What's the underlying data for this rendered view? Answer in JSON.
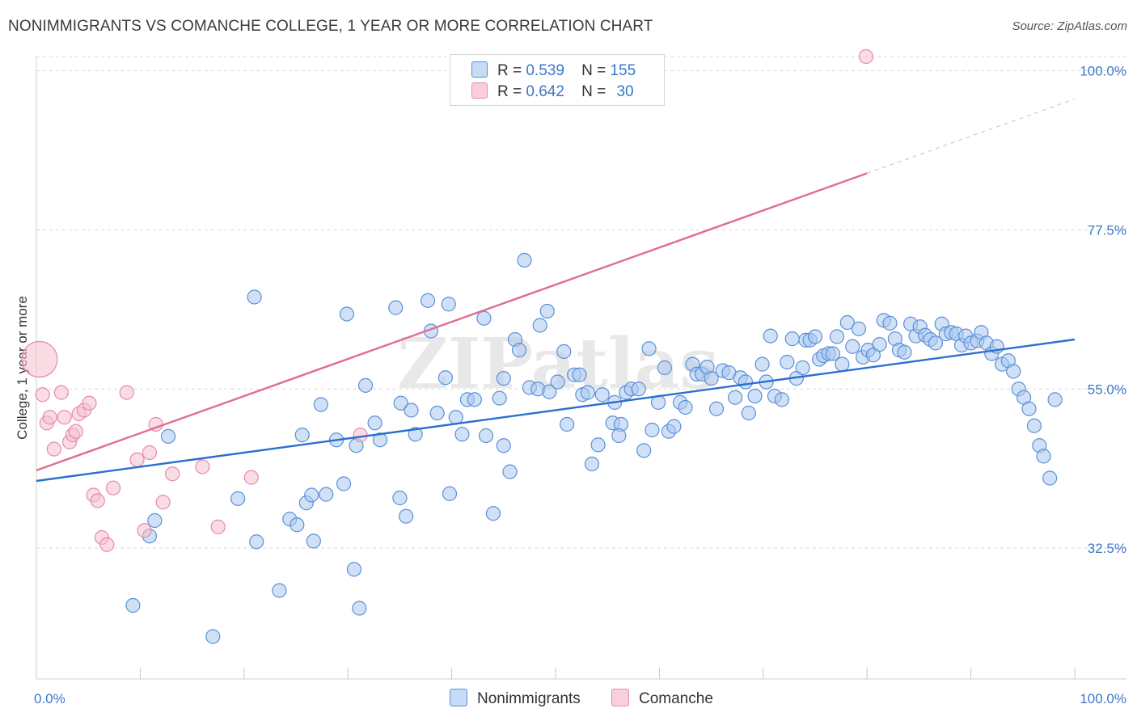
{
  "header": {
    "title": "NONIMMIGRANTS VS COMANCHE COLLEGE, 1 YEAR OR MORE CORRELATION CHART",
    "source": "Source: ZipAtlas.com"
  },
  "watermark": "ZIPatlas",
  "legend": {
    "rows": [
      {
        "r_label": "R =",
        "r_value": "0.539",
        "n_label": "N =",
        "n_value": "155"
      },
      {
        "r_label": "R =",
        "r_value": "0.642",
        "n_label": "N =",
        "n_value": "30"
      }
    ]
  },
  "bottom_legend": {
    "items": [
      {
        "label": "Nonimmigrants"
      },
      {
        "label": "Comanche"
      }
    ]
  },
  "colors": {
    "blue_fill": "#a9c8f0",
    "blue_stroke": "#5b8fd6",
    "blue_line": "#2a6fd0",
    "pink_fill": "#f6bfd0",
    "pink_stroke": "#e58aa8",
    "pink_line": "#e06c94",
    "grid": "#d8d8d8",
    "tick_text": "#3a78c9"
  },
  "chart_data": {
    "type": "scatter",
    "title": "NONIMMIGRANTS VS COMANCHE COLLEGE, 1 YEAR OR MORE CORRELATION CHART",
    "xlabel": "",
    "ylabel": "College, 1 year or more",
    "xlim": [
      0,
      100
    ],
    "ylim": [
      14,
      102
    ],
    "x_tick_labels": [
      "0.0%",
      "100.0%"
    ],
    "y_ticks": [
      32.5,
      55.0,
      77.5,
      100.0
    ],
    "y_tick_labels": [
      "32.5%",
      "55.0%",
      "77.5%",
      "100.0%"
    ],
    "grid": true,
    "legend_position": "top-center",
    "series": [
      {
        "name": "Nonimmigrants",
        "r": 0.539,
        "n": 155,
        "trend": {
          "x": [
            0,
            100
          ],
          "y": [
            42.0,
            62.0
          ]
        },
        "points": [
          {
            "x": 12.7,
            "y": 48.3
          },
          {
            "x": 11.4,
            "y": 36.4
          },
          {
            "x": 9.3,
            "y": 24.4
          },
          {
            "x": 10.9,
            "y": 34.2
          },
          {
            "x": 17.0,
            "y": 20.0
          },
          {
            "x": 19.4,
            "y": 39.5
          },
          {
            "x": 21.0,
            "y": 68.0
          },
          {
            "x": 21.2,
            "y": 33.4
          },
          {
            "x": 23.4,
            "y": 26.5
          },
          {
            "x": 24.4,
            "y": 36.6
          },
          {
            "x": 25.1,
            "y": 35.8
          },
          {
            "x": 25.6,
            "y": 48.5
          },
          {
            "x": 26.0,
            "y": 38.9
          },
          {
            "x": 26.5,
            "y": 40.0
          },
          {
            "x": 26.7,
            "y": 33.5
          },
          {
            "x": 27.4,
            "y": 52.8
          },
          {
            "x": 27.9,
            "y": 40.1
          },
          {
            "x": 28.9,
            "y": 47.8
          },
          {
            "x": 29.6,
            "y": 41.6
          },
          {
            "x": 29.9,
            "y": 65.6
          },
          {
            "x": 30.6,
            "y": 29.5
          },
          {
            "x": 30.8,
            "y": 47.0
          },
          {
            "x": 31.7,
            "y": 55.5
          },
          {
            "x": 31.1,
            "y": 24.0
          },
          {
            "x": 33.1,
            "y": 47.8
          },
          {
            "x": 32.6,
            "y": 50.2
          },
          {
            "x": 34.6,
            "y": 66.5
          },
          {
            "x": 35.0,
            "y": 39.6
          },
          {
            "x": 35.1,
            "y": 53.0
          },
          {
            "x": 35.6,
            "y": 37.0
          },
          {
            "x": 36.1,
            "y": 52.0
          },
          {
            "x": 36.5,
            "y": 48.6
          },
          {
            "x": 37.7,
            "y": 67.5
          },
          {
            "x": 38.0,
            "y": 63.2
          },
          {
            "x": 38.6,
            "y": 51.6
          },
          {
            "x": 39.4,
            "y": 56.6
          },
          {
            "x": 39.7,
            "y": 67.0
          },
          {
            "x": 39.8,
            "y": 40.2
          },
          {
            "x": 40.4,
            "y": 51.0
          },
          {
            "x": 41.0,
            "y": 48.6
          },
          {
            "x": 41.5,
            "y": 53.5
          },
          {
            "x": 42.2,
            "y": 53.5
          },
          {
            "x": 43.1,
            "y": 65.0
          },
          {
            "x": 43.3,
            "y": 48.4
          },
          {
            "x": 44.0,
            "y": 37.4
          },
          {
            "x": 44.6,
            "y": 53.7
          },
          {
            "x": 45.0,
            "y": 56.5
          },
          {
            "x": 45.0,
            "y": 47.0
          },
          {
            "x": 45.6,
            "y": 43.3
          },
          {
            "x": 46.1,
            "y": 62.0
          },
          {
            "x": 46.5,
            "y": 60.5
          },
          {
            "x": 47.0,
            "y": 73.2
          },
          {
            "x": 47.5,
            "y": 55.2
          },
          {
            "x": 48.5,
            "y": 64.0
          },
          {
            "x": 48.3,
            "y": 55.0
          },
          {
            "x": 49.2,
            "y": 66.0
          },
          {
            "x": 49.4,
            "y": 54.6
          },
          {
            "x": 50.2,
            "y": 56.0
          },
          {
            "x": 50.8,
            "y": 60.3
          },
          {
            "x": 51.1,
            "y": 50.0
          },
          {
            "x": 51.8,
            "y": 57.0
          },
          {
            "x": 52.3,
            "y": 57.0
          },
          {
            "x": 52.6,
            "y": 54.2
          },
          {
            "x": 53.1,
            "y": 54.5
          },
          {
            "x": 53.5,
            "y": 44.4
          },
          {
            "x": 54.1,
            "y": 47.1
          },
          {
            "x": 54.5,
            "y": 54.2
          },
          {
            "x": 55.5,
            "y": 50.2
          },
          {
            "x": 55.7,
            "y": 53.1
          },
          {
            "x": 56.3,
            "y": 50.0
          },
          {
            "x": 56.1,
            "y": 48.4
          },
          {
            "x": 56.8,
            "y": 54.5
          },
          {
            "x": 57.3,
            "y": 55.0
          },
          {
            "x": 58.0,
            "y": 55.0
          },
          {
            "x": 58.5,
            "y": 46.3
          },
          {
            "x": 59.0,
            "y": 60.7
          },
          {
            "x": 59.3,
            "y": 49.2
          },
          {
            "x": 59.9,
            "y": 53.1
          },
          {
            "x": 60.5,
            "y": 58.0
          },
          {
            "x": 60.9,
            "y": 49.0
          },
          {
            "x": 61.4,
            "y": 49.7
          },
          {
            "x": 62.0,
            "y": 53.1
          },
          {
            "x": 62.5,
            "y": 52.4
          },
          {
            "x": 63.2,
            "y": 58.5
          },
          {
            "x": 63.6,
            "y": 57.1
          },
          {
            "x": 64.1,
            "y": 57.1
          },
          {
            "x": 64.6,
            "y": 58.1
          },
          {
            "x": 65.0,
            "y": 56.5
          },
          {
            "x": 65.5,
            "y": 52.2
          },
          {
            "x": 66.1,
            "y": 57.6
          },
          {
            "x": 66.7,
            "y": 57.3
          },
          {
            "x": 67.3,
            "y": 53.8
          },
          {
            "x": 67.8,
            "y": 56.6
          },
          {
            "x": 68.3,
            "y": 56.0
          },
          {
            "x": 68.6,
            "y": 51.6
          },
          {
            "x": 69.2,
            "y": 54.0
          },
          {
            "x": 69.9,
            "y": 58.5
          },
          {
            "x": 70.3,
            "y": 56.0
          },
          {
            "x": 70.7,
            "y": 62.5
          },
          {
            "x": 71.1,
            "y": 54.0
          },
          {
            "x": 71.8,
            "y": 53.5
          },
          {
            "x": 72.3,
            "y": 58.8
          },
          {
            "x": 72.8,
            "y": 62.1
          },
          {
            "x": 73.2,
            "y": 56.5
          },
          {
            "x": 73.8,
            "y": 58.0
          },
          {
            "x": 74.1,
            "y": 61.9
          },
          {
            "x": 74.5,
            "y": 61.9
          },
          {
            "x": 75.0,
            "y": 62.4
          },
          {
            "x": 75.4,
            "y": 59.2
          },
          {
            "x": 75.8,
            "y": 59.7
          },
          {
            "x": 76.3,
            "y": 60.0
          },
          {
            "x": 76.7,
            "y": 60.0
          },
          {
            "x": 77.1,
            "y": 62.4
          },
          {
            "x": 77.6,
            "y": 58.5
          },
          {
            "x": 78.1,
            "y": 64.4
          },
          {
            "x": 78.6,
            "y": 61.0
          },
          {
            "x": 79.2,
            "y": 63.5
          },
          {
            "x": 79.6,
            "y": 59.5
          },
          {
            "x": 80.1,
            "y": 60.5
          },
          {
            "x": 80.6,
            "y": 59.8
          },
          {
            "x": 81.2,
            "y": 61.3
          },
          {
            "x": 81.6,
            "y": 64.7
          },
          {
            "x": 82.2,
            "y": 64.3
          },
          {
            "x": 82.7,
            "y": 62.1
          },
          {
            "x": 83.1,
            "y": 60.5
          },
          {
            "x": 83.6,
            "y": 60.2
          },
          {
            "x": 84.2,
            "y": 64.2
          },
          {
            "x": 84.7,
            "y": 62.5
          },
          {
            "x": 85.1,
            "y": 63.8
          },
          {
            "x": 85.6,
            "y": 62.6
          },
          {
            "x": 86.1,
            "y": 62.0
          },
          {
            "x": 86.6,
            "y": 61.5
          },
          {
            "x": 87.2,
            "y": 64.2
          },
          {
            "x": 87.6,
            "y": 62.8
          },
          {
            "x": 88.1,
            "y": 63.0
          },
          {
            "x": 88.6,
            "y": 62.8
          },
          {
            "x": 89.1,
            "y": 61.2
          },
          {
            "x": 89.5,
            "y": 62.5
          },
          {
            "x": 90.0,
            "y": 61.5
          },
          {
            "x": 90.6,
            "y": 61.8
          },
          {
            "x": 91.0,
            "y": 63.0
          },
          {
            "x": 91.5,
            "y": 61.5
          },
          {
            "x": 92.0,
            "y": 60.0
          },
          {
            "x": 92.5,
            "y": 61.0
          },
          {
            "x": 93.0,
            "y": 58.5
          },
          {
            "x": 93.6,
            "y": 59.0
          },
          {
            "x": 94.1,
            "y": 57.5
          },
          {
            "x": 94.6,
            "y": 55.0
          },
          {
            "x": 95.1,
            "y": 53.8
          },
          {
            "x": 95.6,
            "y": 52.2
          },
          {
            "x": 96.1,
            "y": 49.8
          },
          {
            "x": 96.6,
            "y": 47.0
          },
          {
            "x": 97.0,
            "y": 45.5
          },
          {
            "x": 97.6,
            "y": 42.4
          },
          {
            "x": 98.1,
            "y": 53.5
          }
        ]
      },
      {
        "name": "Comanche",
        "r": 0.642,
        "n": 30,
        "trend": {
          "x": [
            0,
            80
          ],
          "y": [
            43.5,
            85.5
          ]
        },
        "trend_dashed_extension": {
          "x": [
            80,
            100
          ],
          "y": [
            85.5,
            96.0
          ]
        },
        "points": [
          {
            "x": 0.3,
            "y": 59.2
          },
          {
            "x": 0.6,
            "y": 54.2
          },
          {
            "x": 1.0,
            "y": 50.2
          },
          {
            "x": 1.3,
            "y": 51.0
          },
          {
            "x": 1.7,
            "y": 46.5
          },
          {
            "x": 2.4,
            "y": 54.5
          },
          {
            "x": 2.7,
            "y": 51.0
          },
          {
            "x": 3.2,
            "y": 47.5
          },
          {
            "x": 3.5,
            "y": 48.5
          },
          {
            "x": 3.8,
            "y": 49.0
          },
          {
            "x": 4.1,
            "y": 51.5
          },
          {
            "x": 4.6,
            "y": 52.0
          },
          {
            "x": 5.1,
            "y": 53.0
          },
          {
            "x": 5.5,
            "y": 40.0
          },
          {
            "x": 5.9,
            "y": 39.2
          },
          {
            "x": 6.3,
            "y": 34.0
          },
          {
            "x": 6.8,
            "y": 33.0
          },
          {
            "x": 7.4,
            "y": 41.0
          },
          {
            "x": 8.7,
            "y": 54.5
          },
          {
            "x": 9.7,
            "y": 45.0
          },
          {
            "x": 10.4,
            "y": 35.0
          },
          {
            "x": 10.9,
            "y": 46.0
          },
          {
            "x": 11.5,
            "y": 50.0
          },
          {
            "x": 12.2,
            "y": 39.0
          },
          {
            "x": 13.1,
            "y": 43.0
          },
          {
            "x": 16.0,
            "y": 44.0
          },
          {
            "x": 17.5,
            "y": 35.5
          },
          {
            "x": 20.7,
            "y": 42.5
          },
          {
            "x": 31.2,
            "y": 48.5
          },
          {
            "x": 79.9,
            "y": 102.0
          }
        ]
      }
    ]
  }
}
